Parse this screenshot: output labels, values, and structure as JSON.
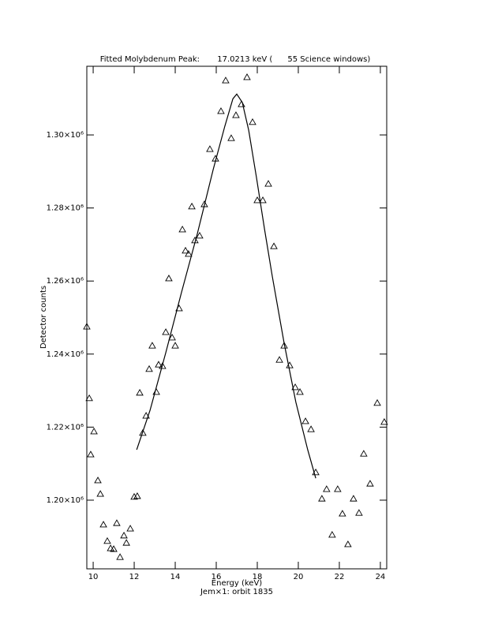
{
  "chart_data": {
    "type": "scatter",
    "title": "Fitted Molybdenum Peak:       17.0213 keV (      55 Science windows)",
    "x_label": "Energy (keV)",
    "subtitle": "Jem×1: orbit 1835",
    "y_label": "Detector counts",
    "xlim": [
      9.69,
      24.31
    ],
    "ylim": [
      1181200,
      1318800
    ],
    "xticks": [
      10,
      12,
      14,
      16,
      18,
      20,
      22,
      24
    ],
    "yticks": [
      {
        "value": 1200000,
        "label": "1.20×10⁶"
      },
      {
        "value": 1220000,
        "label": "1.22×10⁶"
      },
      {
        "value": 1240000,
        "label": "1.24×10⁶"
      },
      {
        "value": 1260000,
        "label": "1.26×10⁶"
      },
      {
        "value": 1280000,
        "label": "1.28×10⁶"
      },
      {
        "value": 1300000,
        "label": "1.30×10⁶"
      }
    ],
    "series": [
      {
        "style": "triangle",
        "color": "#000000",
        "x": [
          9.69,
          9.81,
          9.88,
          10.04,
          10.23,
          10.35,
          10.5,
          10.69,
          10.85,
          11.0,
          11.15,
          11.31,
          11.5,
          11.62,
          11.81,
          12.0,
          12.15,
          12.27,
          12.42,
          12.58,
          12.73,
          12.88,
          13.08,
          13.19,
          13.38,
          13.54,
          13.69,
          13.85,
          14.0,
          14.19,
          14.35,
          14.5,
          14.65,
          14.81,
          14.96,
          15.19,
          15.42,
          15.69,
          15.96,
          16.23,
          16.46,
          16.73,
          16.96,
          17.23,
          17.5,
          17.77,
          18.0,
          18.27,
          18.54,
          18.81,
          19.08,
          19.31,
          19.58,
          19.85,
          20.08,
          20.35,
          20.62,
          20.85,
          21.15,
          21.38,
          21.65,
          21.92,
          22.15,
          22.42,
          22.69,
          22.96,
          23.19,
          23.5,
          23.85,
          24.19
        ],
        "values": [
          1247500,
          1227900,
          1212500,
          1218800,
          1205400,
          1201700,
          1193300,
          1188800,
          1186800,
          1186600,
          1193700,
          1184400,
          1190300,
          1188300,
          1192200,
          1200900,
          1201100,
          1229400,
          1218400,
          1223100,
          1235900,
          1242300,
          1229600,
          1237100,
          1236700,
          1246000,
          1260700,
          1244500,
          1242300,
          1252500,
          1274100,
          1268300,
          1267400,
          1280400,
          1271100,
          1272400,
          1281000,
          1296100,
          1293500,
          1306500,
          1314900,
          1299100,
          1305400,
          1308400,
          1315800,
          1303500,
          1282100,
          1282100,
          1286600,
          1269500,
          1238400,
          1242300,
          1236900,
          1230900,
          1229600,
          1221600,
          1219400,
          1207600,
          1200400,
          1203000,
          1190500,
          1203000,
          1196300,
          1187900,
          1200400,
          1196500,
          1212700,
          1204500,
          1226600,
          1221400
        ]
      },
      {
        "style": "line",
        "color": "#000000",
        "x": [
          12.12,
          12.77,
          13.54,
          14.31,
          15.08,
          15.85,
          16.42,
          16.81,
          17.0,
          17.27,
          17.58,
          17.96,
          18.35,
          18.73,
          19.31,
          19.88,
          20.46,
          20.85
        ],
        "values": [
          1213800,
          1224600,
          1240400,
          1257000,
          1273000,
          1290500,
          1302400,
          1309900,
          1311200,
          1308900,
          1301300,
          1288300,
          1274300,
          1261300,
          1243000,
          1226800,
          1213800,
          1206000
        ]
      }
    ]
  }
}
